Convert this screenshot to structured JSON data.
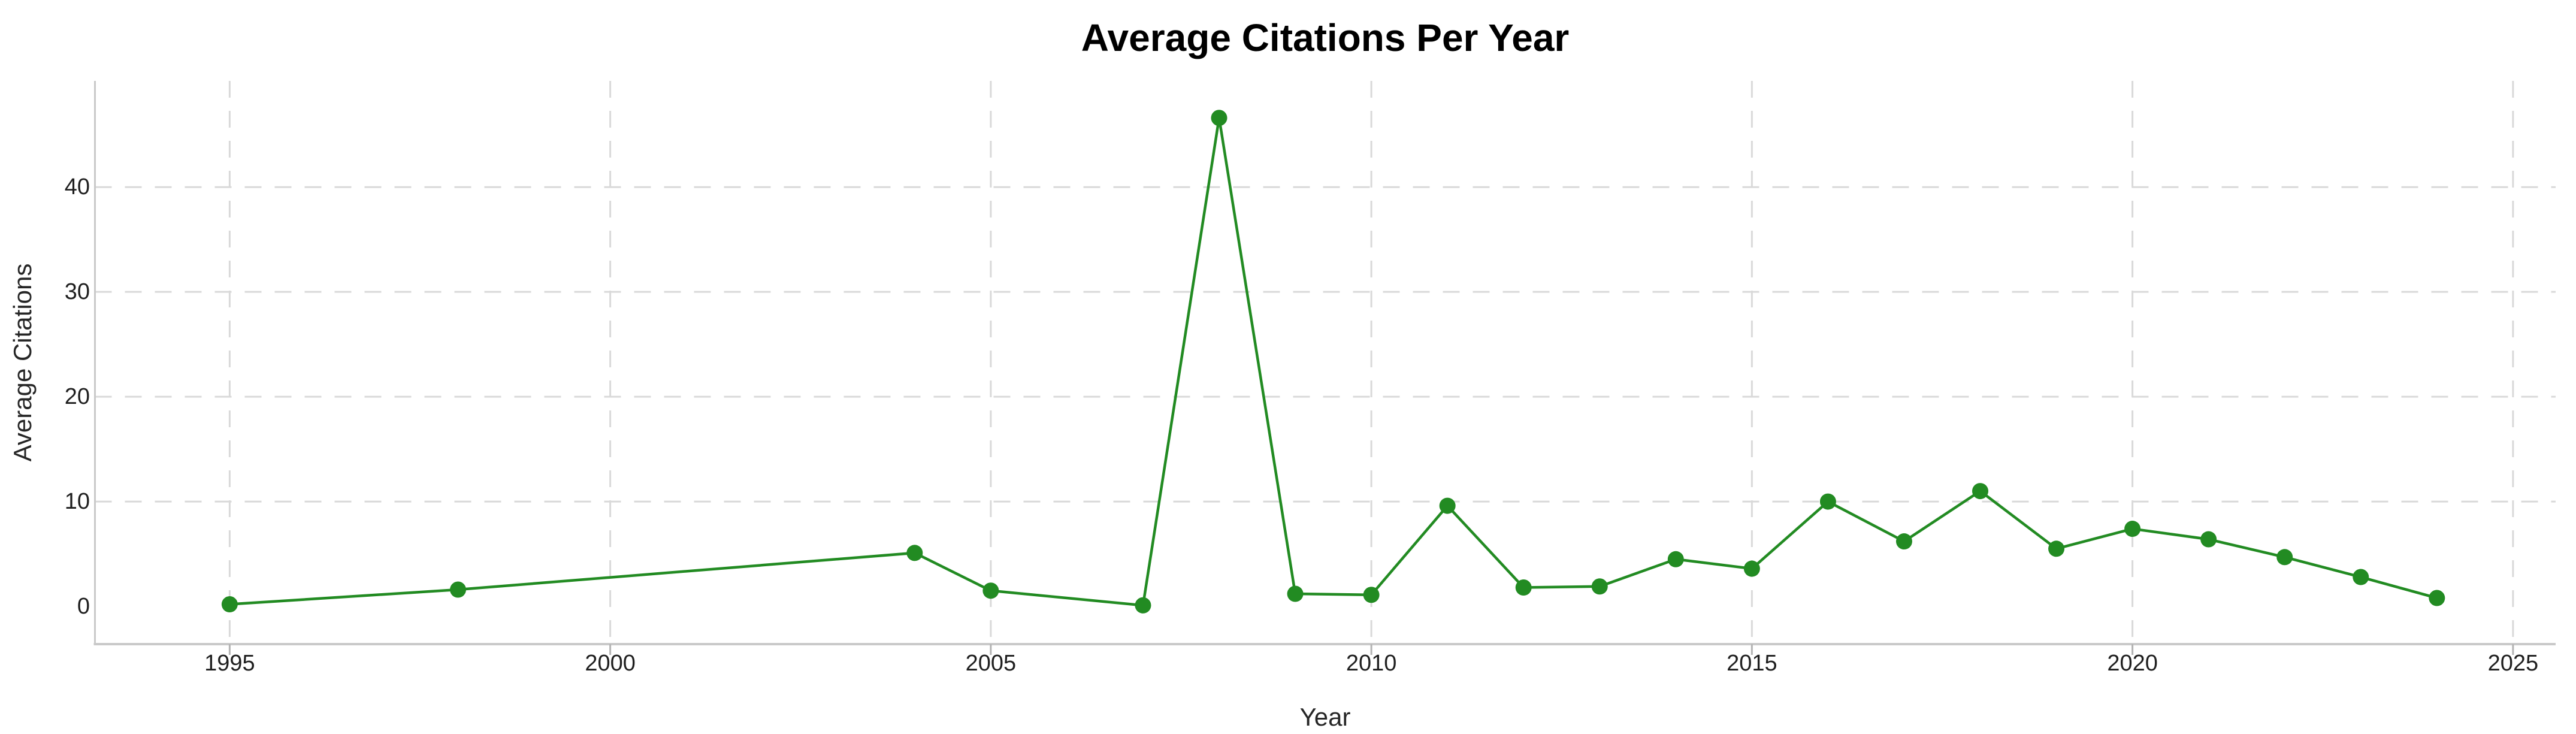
{
  "chart_data": {
    "type": "line",
    "title": "Average Citations Per Year",
    "xlabel": "Year",
    "ylabel": "Average Citations",
    "series": [
      {
        "name": "Average Citations",
        "color": "#228B22",
        "marker": "circle",
        "x": [
          1995,
          1998,
          2004,
          2005,
          2007,
          2008,
          2009,
          2010,
          2011,
          2012,
          2013,
          2014,
          2015,
          2016,
          2017,
          2018,
          2019,
          2020,
          2021,
          2022,
          2023,
          2024
        ],
        "y": [
          0.2,
          1.6,
          5.1,
          1.5,
          0.1,
          46.6,
          1.2,
          1.1,
          9.6,
          1.8,
          1.9,
          4.5,
          3.6,
          10.0,
          6.2,
          11.0,
          5.5,
          7.4,
          6.4,
          4.7,
          2.8,
          0.8
        ]
      }
    ],
    "x_ticks": [
      1995,
      2000,
      2005,
      2010,
      2015,
      2020,
      2025
    ],
    "y_ticks": [
      0,
      10,
      20,
      30,
      40
    ],
    "xlim": [
      1993.23,
      2025.56
    ],
    "ylim": [
      -3.6,
      50.13
    ],
    "grid": {
      "style": "dashed",
      "color": "#d9d9d9",
      "vertical_at": [
        1995,
        2000,
        2005,
        2010,
        2015,
        2020,
        2025
      ],
      "horizontal_at": [
        10,
        20,
        30,
        40
      ]
    },
    "legend": "none",
    "background": "#ffffff"
  }
}
